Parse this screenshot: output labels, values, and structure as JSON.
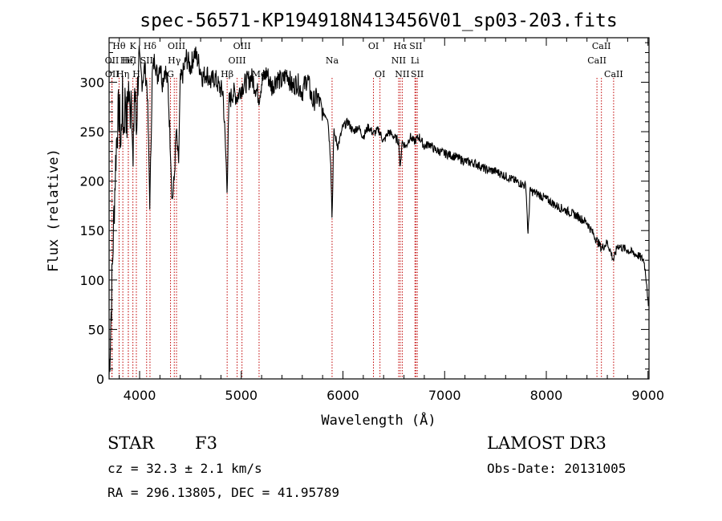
{
  "chart_data": {
    "type": "line",
    "title": "spec-56571-KP194918N413456V01_sp03-203.fits",
    "xlabel": "Wavelength (Å)",
    "ylabel": "Flux (relative)",
    "xlim": [
      3700,
      9010
    ],
    "ylim": [
      0,
      345
    ],
    "xticks": [
      4000,
      5000,
      6000,
      7000,
      8000,
      9000
    ],
    "yticks": [
      0,
      50,
      100,
      150,
      200,
      250,
      300
    ],
    "grid": false,
    "spectrum_points": [
      [
        3700,
        5
      ],
      [
        3712,
        40
      ],
      [
        3725,
        85
      ],
      [
        3740,
        140
      ],
      [
        3755,
        190
      ],
      [
        3770,
        235
      ],
      [
        3785,
        260
      ],
      [
        3800,
        275
      ],
      [
        3815,
        230
      ],
      [
        3830,
        285
      ],
      [
        3845,
        250
      ],
      [
        3860,
        290
      ],
      [
        3875,
        255
      ],
      [
        3890,
        300
      ],
      [
        3905,
        265
      ],
      [
        3920,
        305
      ],
      [
        3935,
        200
      ],
      [
        3950,
        300
      ],
      [
        3968,
        250
      ],
      [
        3985,
        310
      ],
      [
        4000,
        320
      ],
      [
        4025,
        300
      ],
      [
        4050,
        315
      ],
      [
        4075,
        295
      ],
      [
        4101,
        175
      ],
      [
        4125,
        310
      ],
      [
        4150,
        325
      ],
      [
        4175,
        305
      ],
      [
        4200,
        320
      ],
      [
        4225,
        300
      ],
      [
        4250,
        315
      ],
      [
        4280,
        295
      ],
      [
        4305,
        230
      ],
      [
        4320,
        180
      ],
      [
        4340,
        200
      ],
      [
        4360,
        250
      ],
      [
        4383,
        215
      ],
      [
        4400,
        300
      ],
      [
        4430,
        310
      ],
      [
        4460,
        325
      ],
      [
        4500,
        315
      ],
      [
        4540,
        330
      ],
      [
        4580,
        320
      ],
      [
        4620,
        305
      ],
      [
        4660,
        310
      ],
      [
        4700,
        300
      ],
      [
        4740,
        305
      ],
      [
        4780,
        295
      ],
      [
        4820,
        290
      ],
      [
        4861,
        195
      ],
      [
        4880,
        280
      ],
      [
        4920,
        290
      ],
      [
        4960,
        285
      ],
      [
        5000,
        295
      ],
      [
        5050,
        300
      ],
      [
        5100,
        305
      ],
      [
        5140,
        295
      ],
      [
        5175,
        285
      ],
      [
        5200,
        300
      ],
      [
        5250,
        310
      ],
      [
        5300,
        295
      ],
      [
        5350,
        305
      ],
      [
        5400,
        300
      ],
      [
        5450,
        310
      ],
      [
        5500,
        295
      ],
      [
        5550,
        300
      ],
      [
        5600,
        290
      ],
      [
        5650,
        305
      ],
      [
        5700,
        280
      ],
      [
        5750,
        285
      ],
      [
        5800,
        270
      ],
      [
        5850,
        265
      ],
      [
        5880,
        220
      ],
      [
        5893,
        160
      ],
      [
        5910,
        250
      ],
      [
        5950,
        235
      ],
      [
        6000,
        255
      ],
      [
        6050,
        260
      ],
      [
        6100,
        250
      ],
      [
        6150,
        255
      ],
      [
        6200,
        245
      ],
      [
        6250,
        255
      ],
      [
        6300,
        248
      ],
      [
        6350,
        252
      ],
      [
        6400,
        240
      ],
      [
        6450,
        250
      ],
      [
        6500,
        245
      ],
      [
        6550,
        240
      ],
      [
        6563,
        210
      ],
      [
        6580,
        240
      ],
      [
        6620,
        235
      ],
      [
        6660,
        245
      ],
      [
        6700,
        240
      ],
      [
        6750,
        245
      ],
      [
        6800,
        235
      ],
      [
        6850,
        238
      ],
      [
        6900,
        232
      ],
      [
        6950,
        230
      ],
      [
        7000,
        228
      ],
      [
        7100,
        225
      ],
      [
        7200,
        220
      ],
      [
        7300,
        218
      ],
      [
        7400,
        212
      ],
      [
        7500,
        210
      ],
      [
        7600,
        205
      ],
      [
        7700,
        200
      ],
      [
        7800,
        195
      ],
      [
        7820,
        145
      ],
      [
        7840,
        190
      ],
      [
        7900,
        188
      ],
      [
        8000,
        182
      ],
      [
        8100,
        175
      ],
      [
        8200,
        170
      ],
      [
        8300,
        165
      ],
      [
        8400,
        158
      ],
      [
        8498,
        140
      ],
      [
        8542,
        132
      ],
      [
        8600,
        138
      ],
      [
        8662,
        120
      ],
      [
        8700,
        135
      ],
      [
        8800,
        130
      ],
      [
        8900,
        125
      ],
      [
        8960,
        120
      ],
      [
        8990,
        95
      ],
      [
        9005,
        70
      ]
    ],
    "lines": [
      {
        "name": "Hθ",
        "x": 3798,
        "row": 0
      },
      {
        "name": "OII",
        "x": 3727,
        "row": 1
      },
      {
        "name": "OII",
        "x": 3729,
        "row": 2
      },
      {
        "name": "Hη",
        "x": 3835,
        "row": 2
      },
      {
        "name": "Hζ",
        "x": 3889,
        "row": 1
      },
      {
        "name": "HeI",
        "x": 3889,
        "row": 1
      },
      {
        "name": "K",
        "x": 3934,
        "row": 0
      },
      {
        "name": "SII",
        "x": 4069,
        "row": 1
      },
      {
        "name": "H",
        "x": 3968,
        "row": 2
      },
      {
        "name": "Hδ",
        "x": 4102,
        "row": 0
      },
      {
        "name": "OIII",
        "x": 4363,
        "row": 0
      },
      {
        "name": "Hγ",
        "x": 4341,
        "row": 1
      },
      {
        "name": "G",
        "x": 4304,
        "row": 2
      },
      {
        "name": "OIII",
        "x": 5007,
        "row": 0
      },
      {
        "name": "OIII",
        "x": 4959,
        "row": 1
      },
      {
        "name": "Hβ",
        "x": 4861,
        "row": 2
      },
      {
        "name": "Mg",
        "x": 5175,
        "row": 2
      },
      {
        "name": "Na",
        "x": 5893,
        "row": 1
      },
      {
        "name": "OI",
        "x": 6300,
        "row": 0
      },
      {
        "name": "OI",
        "x": 6364,
        "row": 2
      },
      {
        "name": "Hα",
        "x": 6563,
        "row": 0
      },
      {
        "name": "NII",
        "x": 6548,
        "row": 1
      },
      {
        "name": "NII",
        "x": 6583,
        "row": 2
      },
      {
        "name": "SII",
        "x": 6717,
        "row": 0
      },
      {
        "name": "Li",
        "x": 6708,
        "row": 1
      },
      {
        "name": "SII",
        "x": 6731,
        "row": 2
      },
      {
        "name": "CaII",
        "x": 8542,
        "row": 0
      },
      {
        "name": "CaII",
        "x": 8498,
        "row": 1
      },
      {
        "name": "CaII",
        "x": 8662,
        "row": 2
      }
    ]
  },
  "info": {
    "class": "STAR",
    "subclass": "F3",
    "survey": "LAMOST DR3",
    "cz": "cz = 32.3 ± 2.1 km/s",
    "obs_date": "Obs-Date: 20131005",
    "coords": "RA = 296.13805, DEC =  41.95789"
  },
  "colors": {
    "spectrum": "#000000",
    "line_marker": "#c00000",
    "axis": "#000000"
  }
}
